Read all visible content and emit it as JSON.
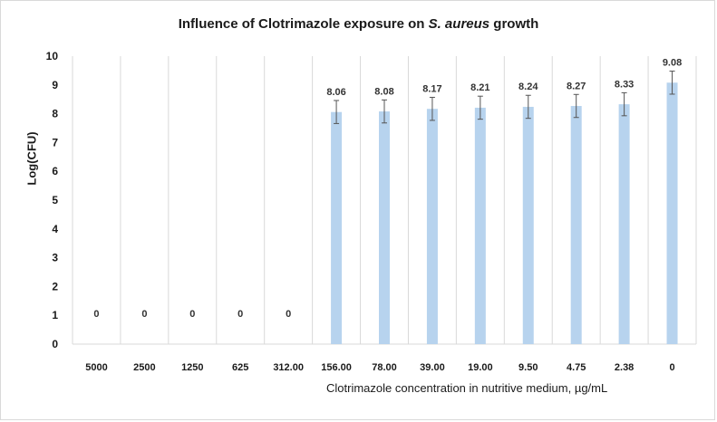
{
  "chart_data": {
    "type": "bar",
    "title_main": "Influence of Clotrimazole exposure on ",
    "title_italic": "S. aureus",
    "title_end": " growth",
    "xlabel": "Clotrimazole concentration in nutritive medium, µg/mL",
    "ylabel": "Log(CFU)",
    "categories": [
      "5000",
      "2500",
      "1250",
      "625",
      "312.00",
      "156.00",
      "78.00",
      "39.00",
      "19.00",
      "9.50",
      "4.75",
      "2.38",
      "0"
    ],
    "values": [
      0,
      0,
      0,
      0,
      0,
      8.06,
      8.08,
      8.17,
      8.21,
      8.24,
      8.27,
      8.33,
      9.08
    ],
    "data_labels": [
      "0",
      "0",
      "0",
      "0",
      "0",
      "8.06",
      "8.08",
      "8.17",
      "8.21",
      "8.24",
      "8.27",
      "8.33",
      "9.08"
    ],
    "errors": [
      0,
      0,
      0,
      0,
      0,
      0.4,
      0.4,
      0.4,
      0.4,
      0.4,
      0.4,
      0.4,
      0.4
    ],
    "ylim": [
      0,
      10
    ],
    "yticks": [
      "0",
      "1",
      "2",
      "3",
      "4",
      "5",
      "6",
      "7",
      "8",
      "9",
      "10"
    ],
    "grid": "vertical",
    "bar_color": "#b7d3ee",
    "grid_color": "#d9d9d9",
    "error_color": "#555555"
  }
}
